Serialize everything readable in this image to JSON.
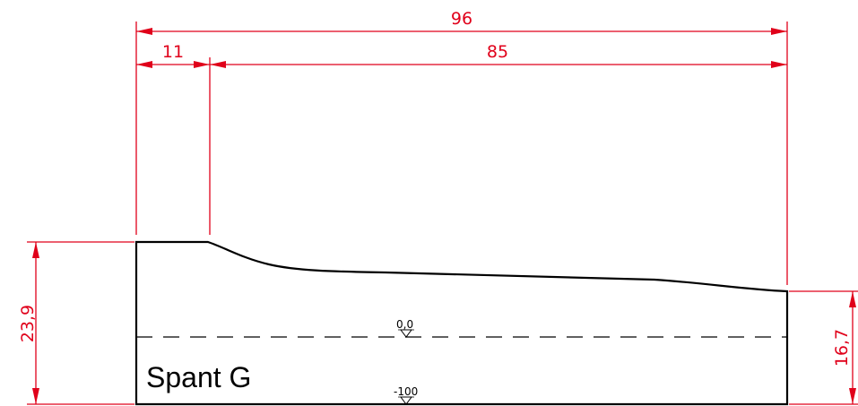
{
  "drawing": {
    "part_label": "Spant G",
    "dimensions": {
      "total_length": "96",
      "flat_length": "11",
      "taper_length": "85",
      "left_height": "23,9",
      "right_height": "16,7"
    },
    "level_marks": {
      "zero": "0,0",
      "bottom": "-100"
    },
    "colors": {
      "dimension": "#e0001a",
      "outline": "#000000"
    }
  }
}
